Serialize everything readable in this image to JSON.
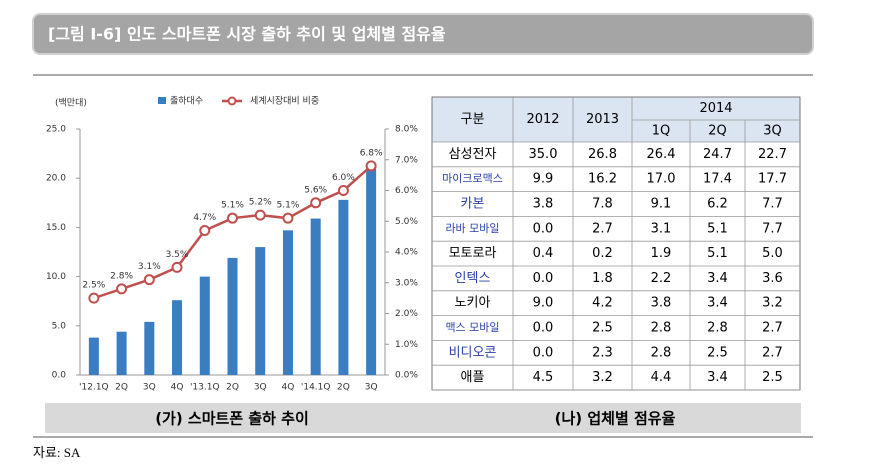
{
  "header": {
    "title": "[그림 I-6] 인도 스마트폰 시장 출하 추이 및 업체별 점유율"
  },
  "chart_data": {
    "type": "bar_line",
    "unit_label": "(백만대)",
    "categories": [
      "'12.1Q",
      "2Q",
      "3Q",
      "4Q",
      "'13.1Q",
      "2Q",
      "3Q",
      "4Q",
      "'14.1Q",
      "2Q",
      "3Q"
    ],
    "series": [
      {
        "name": "출하대수",
        "color": "#3a7dc0",
        "type": "bar",
        "values": [
          3.8,
          4.4,
          5.4,
          7.6,
          10.0,
          11.9,
          13.0,
          14.7,
          15.9,
          17.8,
          21.5
        ]
      },
      {
        "name": "세계시장대비 비중",
        "color": "#c0504d",
        "type": "line",
        "axis": "y2",
        "values": [
          2.5,
          2.8,
          3.1,
          3.5,
          4.7,
          5.1,
          5.2,
          5.1,
          5.6,
          6.0,
          6.8
        ],
        "value_labels": [
          "2.5%",
          "2.8%",
          "3.1%",
          "3.5%",
          "4.7%",
          "5.1%",
          "5.2%",
          "5.1%",
          "5.6%",
          "6.0%",
          "6.8%"
        ]
      }
    ],
    "ylim": [
      0,
      25
    ],
    "yticks": [
      {
        "value": 0,
        "label": "0.0"
      },
      {
        "value": 5,
        "label": "5.0"
      },
      {
        "value": 10,
        "label": "10.0"
      },
      {
        "value": 15,
        "label": "15.0"
      },
      {
        "value": 20,
        "label": "20.0"
      },
      {
        "value": 25,
        "label": "25.0"
      }
    ],
    "y2lim": [
      0,
      8
    ],
    "y2ticks": [
      {
        "value": 0,
        "label": "0.0%"
      },
      {
        "value": 1,
        "label": "1.0%"
      },
      {
        "value": 2,
        "label": "2.0%"
      },
      {
        "value": 3,
        "label": "3.0%"
      },
      {
        "value": 4,
        "label": "4.0%"
      },
      {
        "value": 5,
        "label": "5.0%"
      },
      {
        "value": 6,
        "label": "6.0%"
      },
      {
        "value": 7,
        "label": "7.0%"
      },
      {
        "value": 8,
        "label": "8.0%"
      }
    ]
  },
  "table": {
    "header": {
      "label": "구분",
      "years": [
        "2012",
        "2013",
        "2014"
      ],
      "quarters": [
        "1Q",
        "2Q",
        "3Q"
      ]
    },
    "rows": [
      {
        "name": "삼성전자",
        "color": "#000000",
        "values": [
          "35.0",
          "26.8",
          "26.4",
          "24.7",
          "22.7"
        ]
      },
      {
        "name": "마이크로맥스",
        "color": "#2a3fa8",
        "values": [
          "9.9",
          "16.2",
          "17.0",
          "17.4",
          "17.7"
        ]
      },
      {
        "name": "카본",
        "color": "#2a3fa8",
        "values": [
          "3.8",
          "7.8",
          "9.1",
          "6.2",
          "7.7"
        ]
      },
      {
        "name": "라바 모바일",
        "color": "#2a3fa8",
        "values": [
          "0.0",
          "2.7",
          "3.1",
          "5.1",
          "7.7"
        ]
      },
      {
        "name": "모토로라",
        "color": "#000000",
        "values": [
          "0.4",
          "0.2",
          "1.9",
          "5.1",
          "5.0"
        ]
      },
      {
        "name": "인텍스",
        "color": "#2a3fa8",
        "values": [
          "0.0",
          "1.8",
          "2.2",
          "3.4",
          "3.6"
        ]
      },
      {
        "name": "노키아",
        "color": "#000000",
        "values": [
          "9.0",
          "4.2",
          "3.8",
          "3.4",
          "3.2"
        ]
      },
      {
        "name": "맥스 모바일",
        "color": "#2a3fa8",
        "values": [
          "0.0",
          "2.5",
          "2.8",
          "2.8",
          "2.7"
        ]
      },
      {
        "name": "비디오콘",
        "color": "#2a3fa8",
        "values": [
          "0.0",
          "2.3",
          "2.8",
          "2.5",
          "2.7"
        ]
      },
      {
        "name": "애플",
        "color": "#000000",
        "values": [
          "4.5",
          "3.2",
          "4.4",
          "3.4",
          "2.5"
        ]
      }
    ]
  },
  "captions": [
    "(가) 스마트폰 출하 추이",
    "(나) 업체별 점유율"
  ],
  "source": "자료: SA"
}
